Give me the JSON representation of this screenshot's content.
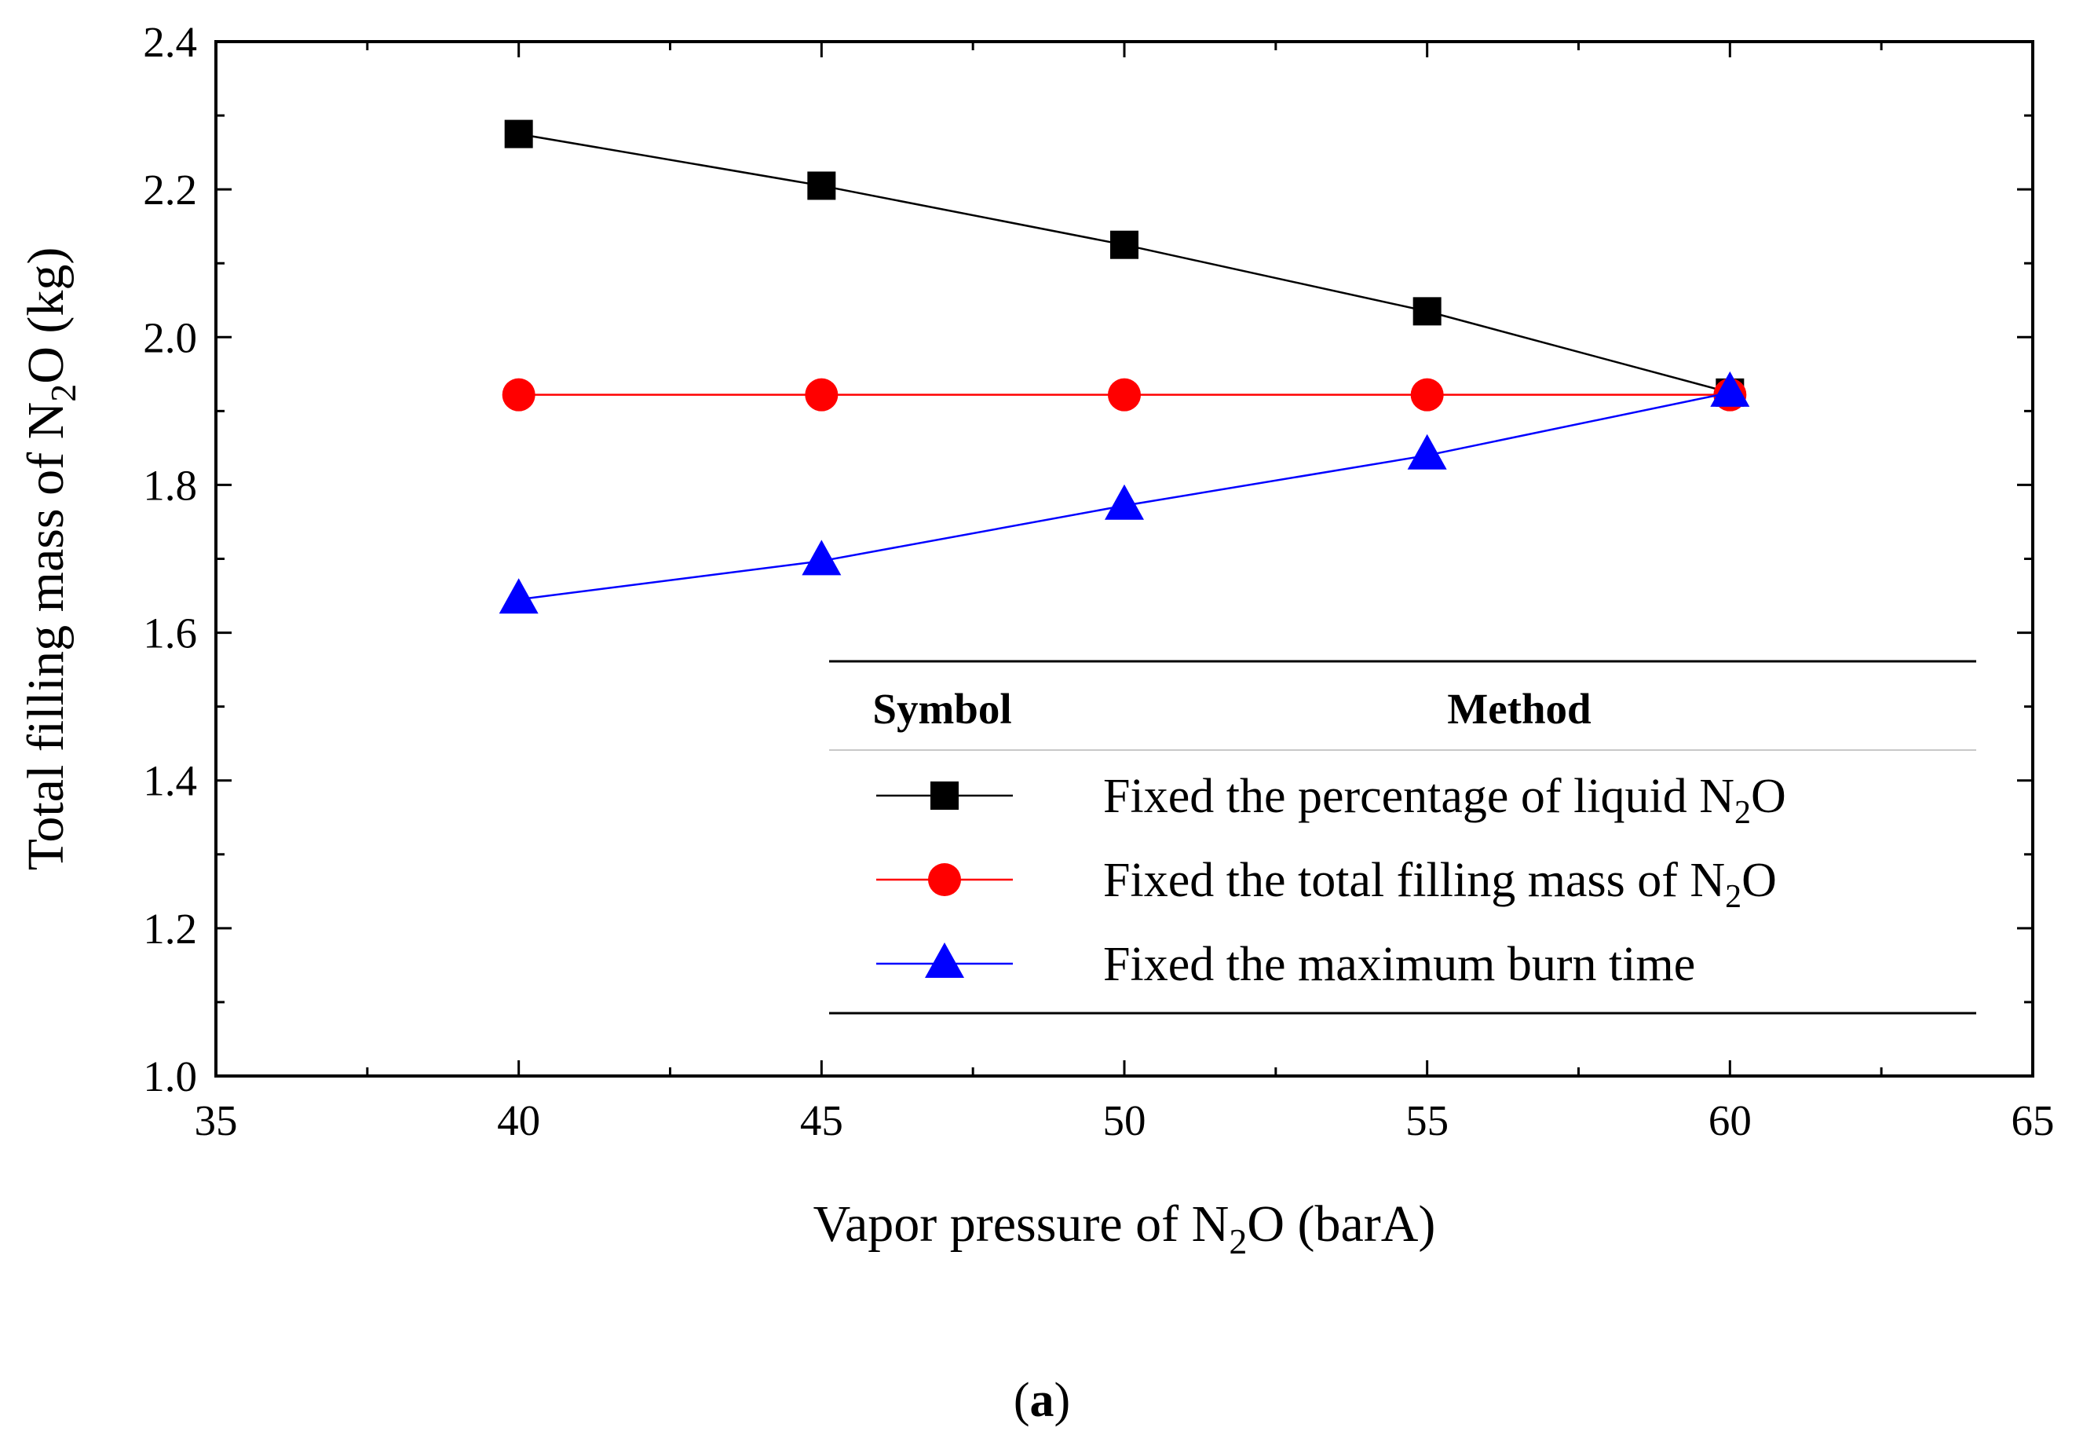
{
  "chart_data": {
    "type": "line",
    "x_axis": {
      "label_prefix": "Vapor pressure of N",
      "label_sub": "2",
      "label_suffix": "O (barA)",
      "range": [
        35,
        65
      ],
      "ticks": [
        "35",
        "40",
        "45",
        "50",
        "55",
        "60",
        "65"
      ]
    },
    "y_axis": {
      "label_prefix": "Total filling mass of N",
      "label_sub": "2",
      "label_suffix": "O (kg)",
      "range": [
        1.0,
        2.4
      ],
      "ticks": [
        "1.0",
        "1.2",
        "1.4",
        "1.6",
        "1.8",
        "2.0",
        "2.2",
        "2.4"
      ]
    },
    "x": [
      40,
      45,
      50,
      55,
      60
    ],
    "series": [
      {
        "name": "Fixed the percentage of liquid N2O",
        "marker": "square",
        "color": "#000000",
        "values": [
          2.275,
          2.205,
          2.125,
          2.035,
          1.925
        ]
      },
      {
        "name": "Fixed the total filling mass of N2O",
        "marker": "circle",
        "color": "#ff0000",
        "values": [
          1.922,
          1.922,
          1.922,
          1.922,
          1.922
        ]
      },
      {
        "name": "Fixed the maximum burn time",
        "marker": "triangle",
        "color": "#0000ff",
        "values": [
          1.645,
          1.697,
          1.772,
          1.84,
          1.925
        ]
      }
    ],
    "legend": {
      "position": "bottom-right",
      "header_symbol": "Symbol",
      "header_method": "Method",
      "entries": [
        {
          "prefix": "Fixed the percentage of liquid N",
          "sub": "2",
          "suffix": "O"
        },
        {
          "prefix": "Fixed the total filling mass of N",
          "sub": "2",
          "suffix": "O"
        },
        {
          "prefix": "Fixed the maximum burn time",
          "sub": "",
          "suffix": ""
        }
      ]
    },
    "caption": {
      "open": "(",
      "letter": "a",
      "close": ")"
    }
  }
}
